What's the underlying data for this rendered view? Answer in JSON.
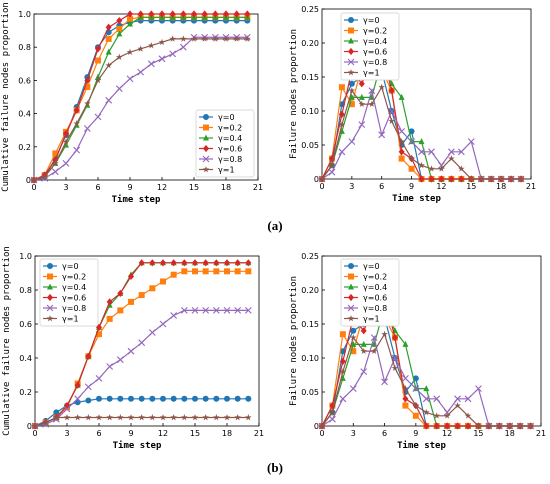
{
  "captions": {
    "a": "(a)",
    "b": "(b)"
  },
  "colors": {
    "y0": "#1f77b4",
    "y02": "#ff7f0e",
    "y04": "#2ca02c",
    "y06": "#d62728",
    "y08": "#9467bd",
    "y1": "#8c564b"
  },
  "chart_data": [
    {
      "id": "a_left",
      "type": "line",
      "xlabel": "Time step",
      "ylabel": "Cumulative failure nodes proportion",
      "xlim": [
        0,
        21
      ],
      "ylim": [
        0,
        1.0
      ],
      "xticks": [
        0,
        3,
        6,
        9,
        12,
        15,
        18,
        21
      ],
      "yticks": [
        "0",
        "0.2",
        "0.4",
        "0.6",
        "0.8",
        "1.0"
      ],
      "legend_position": "lower-right",
      "x": [
        0,
        1,
        2,
        3,
        4,
        5,
        6,
        7,
        8,
        9,
        10,
        11,
        12,
        13,
        14,
        15,
        16,
        17,
        18,
        19,
        20
      ],
      "series": [
        {
          "name": "γ=0",
          "marker": "circle",
          "color": "#1f77b4",
          "values": [
            0,
            0.02,
            0.13,
            0.27,
            0.44,
            0.62,
            0.8,
            0.89,
            0.93,
            0.95,
            0.96,
            0.96,
            0.96,
            0.96,
            0.96,
            0.96,
            0.96,
            0.96,
            0.96,
            0.96,
            0.96
          ]
        },
        {
          "name": "γ=0.2",
          "marker": "square",
          "color": "#ff7f0e",
          "values": [
            0,
            0.03,
            0.16,
            0.29,
            0.42,
            0.56,
            0.72,
            0.85,
            0.91,
            0.97,
            0.98,
            0.98,
            0.98,
            0.98,
            0.98,
            0.98,
            0.98,
            0.98,
            0.98,
            0.98,
            0.98
          ]
        },
        {
          "name": "γ=0.4",
          "marker": "triangle",
          "color": "#2ca02c",
          "values": [
            0,
            0.02,
            0.1,
            0.21,
            0.33,
            0.45,
            0.62,
            0.77,
            0.88,
            0.94,
            0.98,
            0.98,
            0.98,
            0.98,
            0.98,
            0.98,
            0.98,
            0.98,
            0.98,
            0.98,
            0.98
          ]
        },
        {
          "name": "γ=0.6",
          "marker": "diamond",
          "color": "#d62728",
          "values": [
            0,
            0.03,
            0.12,
            0.28,
            0.42,
            0.6,
            0.79,
            0.92,
            0.96,
            1.0,
            1.0,
            1.0,
            1.0,
            1.0,
            1.0,
            1.0,
            1.0,
            1.0,
            1.0,
            1.0,
            1.0
          ]
        },
        {
          "name": "γ=0.8",
          "marker": "x",
          "color": "#9467bd",
          "values": [
            0,
            0.01,
            0.05,
            0.1,
            0.18,
            0.31,
            0.38,
            0.48,
            0.55,
            0.61,
            0.65,
            0.7,
            0.73,
            0.76,
            0.8,
            0.86,
            0.86,
            0.86,
            0.86,
            0.86,
            0.86
          ]
        },
        {
          "name": "γ=1",
          "marker": "star",
          "color": "#8c564b",
          "values": [
            0,
            0.02,
            0.1,
            0.23,
            0.34,
            0.46,
            0.6,
            0.69,
            0.74,
            0.77,
            0.79,
            0.81,
            0.83,
            0.85,
            0.85,
            0.85,
            0.85,
            0.85,
            0.85,
            0.85,
            0.85
          ]
        }
      ]
    },
    {
      "id": "a_right",
      "type": "line",
      "xlabel": "Time step",
      "ylabel": "Failure nodes proportion",
      "xlim": [
        0,
        21
      ],
      "ylim": [
        0,
        0.25
      ],
      "xticks": [
        0,
        3,
        6,
        9,
        12,
        15,
        18,
        21
      ],
      "yticks": [
        "0",
        "0.05",
        "0.10",
        "0.15",
        "0.20",
        "0.25"
      ],
      "legend_position": "top-left",
      "x": [
        0,
        1,
        2,
        3,
        4,
        5,
        6,
        7,
        8,
        9,
        10,
        11,
        12,
        13,
        14,
        15,
        16,
        17,
        18,
        19,
        20
      ],
      "series": [
        {
          "name": "γ=0",
          "marker": "circle",
          "color": "#1f77b4",
          "values": [
            0,
            0.02,
            0.11,
            0.14,
            0.15,
            0.16,
            0.16,
            0.1,
            0.05,
            0.07,
            0,
            0,
            0,
            0,
            0,
            0,
            0,
            0,
            0,
            0,
            0
          ]
        },
        {
          "name": "γ=0.2",
          "marker": "square",
          "color": "#ff7f0e",
          "values": [
            0,
            0.03,
            0.135,
            0.11,
            0.165,
            0.165,
            0.16,
            0.13,
            0.03,
            0.015,
            0,
            0,
            0,
            0,
            0,
            0,
            0,
            0,
            0,
            0,
            0
          ]
        },
        {
          "name": "γ=0.4",
          "marker": "triangle",
          "color": "#2ca02c",
          "values": [
            0,
            0.02,
            0.07,
            0.12,
            0.12,
            0.12,
            0.175,
            0.14,
            0.12,
            0.055,
            0.055,
            0,
            0,
            0,
            0,
            0,
            0,
            0,
            0,
            0,
            0
          ]
        },
        {
          "name": "γ=0.6",
          "marker": "diamond",
          "color": "#d62728",
          "values": [
            0,
            0.03,
            0.095,
            0.16,
            0.14,
            0.175,
            0.19,
            0.13,
            0.04,
            0.03,
            0,
            0,
            0,
            0,
            0,
            0,
            0,
            0,
            0,
            0,
            0
          ]
        },
        {
          "name": "γ=0.8",
          "marker": "x",
          "color": "#9467bd",
          "values": [
            0,
            0.01,
            0.04,
            0.055,
            0.08,
            0.13,
            0.065,
            0.1,
            0.07,
            0.055,
            0.04,
            0.04,
            0.02,
            0.04,
            0.04,
            0.055,
            0,
            0,
            0,
            0,
            0
          ]
        },
        {
          "name": "γ=1",
          "marker": "star",
          "color": "#8c564b",
          "values": [
            0,
            0.02,
            0.08,
            0.13,
            0.11,
            0.11,
            0.135,
            0.085,
            0.055,
            0.03,
            0.02,
            0.015,
            0.015,
            0.03,
            0.015,
            0,
            0,
            0,
            0,
            0,
            0
          ]
        }
      ]
    },
    {
      "id": "b_left",
      "type": "line",
      "xlabel": "Time step",
      "ylabel": "Cumulative failure nodes proportion",
      "xlim": [
        0,
        21
      ],
      "ylim": [
        0,
        1.0
      ],
      "xticks": [
        0,
        3,
        6,
        9,
        12,
        15,
        18,
        21
      ],
      "yticks": [
        "0",
        "0.2",
        "0.4",
        "0.6",
        "0.8",
        "1.0"
      ],
      "legend_position": "top-left",
      "x": [
        0,
        1,
        2,
        3,
        4,
        5,
        6,
        7,
        8,
        9,
        10,
        11,
        12,
        13,
        14,
        15,
        16,
        17,
        18,
        19,
        20
      ],
      "series": [
        {
          "name": "γ=0",
          "marker": "circle",
          "color": "#1f77b4",
          "values": [
            0,
            0.03,
            0.08,
            0.12,
            0.14,
            0.15,
            0.16,
            0.16,
            0.16,
            0.16,
            0.16,
            0.16,
            0.16,
            0.16,
            0.16,
            0.16,
            0.16,
            0.16,
            0.16,
            0.16,
            0.16
          ]
        },
        {
          "name": "γ=0.2",
          "marker": "square",
          "color": "#ff7f0e",
          "values": [
            0,
            0.02,
            0.05,
            0.11,
            0.25,
            0.41,
            0.54,
            0.63,
            0.68,
            0.73,
            0.77,
            0.81,
            0.85,
            0.89,
            0.91,
            0.91,
            0.91,
            0.91,
            0.91,
            0.91,
            0.91
          ]
        },
        {
          "name": "γ=0.4",
          "marker": "triangle",
          "color": "#2ca02c",
          "values": [
            0,
            0.02,
            0.05,
            0.12,
            0.24,
            0.41,
            0.58,
            0.71,
            0.78,
            0.89,
            0.96,
            0.96,
            0.96,
            0.96,
            0.96,
            0.96,
            0.96,
            0.96,
            0.96,
            0.96,
            0.96
          ]
        },
        {
          "name": "γ=0.6",
          "marker": "diamond",
          "color": "#d62728",
          "values": [
            0,
            0.02,
            0.05,
            0.12,
            0.24,
            0.41,
            0.58,
            0.73,
            0.78,
            0.88,
            0.96,
            0.96,
            0.96,
            0.96,
            0.96,
            0.96,
            0.96,
            0.96,
            0.96,
            0.96,
            0.96
          ]
        },
        {
          "name": "γ=0.8",
          "marker": "x",
          "color": "#9467bd",
          "values": [
            0,
            0.01,
            0.04,
            0.1,
            0.16,
            0.23,
            0.28,
            0.35,
            0.39,
            0.44,
            0.49,
            0.55,
            0.6,
            0.65,
            0.68,
            0.68,
            0.68,
            0.68,
            0.68,
            0.68,
            0.68
          ]
        },
        {
          "name": "γ=1",
          "marker": "star",
          "color": "#8c564b",
          "values": [
            0,
            0.02,
            0.05,
            0.05,
            0.05,
            0.05,
            0.05,
            0.05,
            0.05,
            0.05,
            0.05,
            0.05,
            0.05,
            0.05,
            0.05,
            0.05,
            0.05,
            0.05,
            0.05,
            0.05,
            0.05
          ]
        }
      ]
    },
    {
      "id": "b_right",
      "type": "line",
      "xlabel": "Time step",
      "ylabel": "Failure nodes proportion",
      "xlim": [
        0,
        21
      ],
      "ylim": [
        0,
        0.25
      ],
      "xticks": [
        0,
        3,
        6,
        9,
        12,
        15,
        18,
        21
      ],
      "yticks": [
        "0",
        "0.05",
        "0.10",
        "0.15",
        "0.20",
        "0.25"
      ],
      "legend_position": "top-left",
      "x": [
        0,
        1,
        2,
        3,
        4,
        5,
        6,
        7,
        8,
        9,
        10,
        11,
        12,
        13,
        14,
        15,
        16,
        17,
        18,
        19,
        20
      ],
      "series": [
        {
          "name": "γ=0",
          "marker": "circle",
          "color": "#1f77b4",
          "values": [
            0,
            0.02,
            0.11,
            0.14,
            0.15,
            0.16,
            0.16,
            0.1,
            0.05,
            0.07,
            0,
            0,
            0,
            0,
            0,
            0,
            0,
            0,
            0,
            0,
            0
          ]
        },
        {
          "name": "γ=0.2",
          "marker": "square",
          "color": "#ff7f0e",
          "values": [
            0,
            0.03,
            0.135,
            0.11,
            0.165,
            0.165,
            0.16,
            0.13,
            0.03,
            0.015,
            0,
            0,
            0,
            0,
            0,
            0,
            0,
            0,
            0,
            0,
            0
          ]
        },
        {
          "name": "γ=0.4",
          "marker": "triangle",
          "color": "#2ca02c",
          "values": [
            0,
            0.02,
            0.07,
            0.12,
            0.12,
            0.12,
            0.175,
            0.14,
            0.12,
            0.055,
            0.055,
            0,
            0,
            0,
            0,
            0,
            0,
            0,
            0,
            0,
            0
          ]
        },
        {
          "name": "γ=0.6",
          "marker": "diamond",
          "color": "#d62728",
          "values": [
            0,
            0.03,
            0.095,
            0.16,
            0.14,
            0.175,
            0.19,
            0.13,
            0.04,
            0.03,
            0,
            0,
            0,
            0,
            0,
            0,
            0,
            0,
            0,
            0,
            0
          ]
        },
        {
          "name": "γ=0.8",
          "marker": "x",
          "color": "#9467bd",
          "values": [
            0,
            0.01,
            0.04,
            0.055,
            0.08,
            0.13,
            0.065,
            0.1,
            0.07,
            0.055,
            0.04,
            0.04,
            0.02,
            0.04,
            0.04,
            0.055,
            0,
            0,
            0,
            0,
            0
          ]
        },
        {
          "name": "γ=1",
          "marker": "star",
          "color": "#8c564b",
          "values": [
            0,
            0.02,
            0.08,
            0.13,
            0.11,
            0.11,
            0.135,
            0.085,
            0.055,
            0.03,
            0.02,
            0.015,
            0.015,
            0.03,
            0.015,
            0,
            0,
            0,
            0,
            0,
            0
          ]
        }
      ]
    }
  ]
}
